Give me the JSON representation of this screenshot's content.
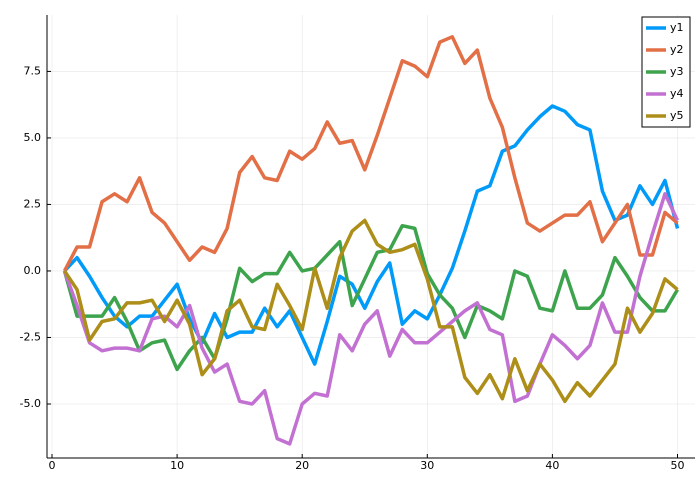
{
  "chart_data": {
    "type": "line",
    "x": [
      1,
      2,
      3,
      4,
      5,
      6,
      7,
      8,
      9,
      10,
      11,
      12,
      13,
      14,
      15,
      16,
      17,
      18,
      19,
      20,
      21,
      22,
      23,
      24,
      25,
      26,
      27,
      28,
      29,
      30,
      31,
      32,
      33,
      34,
      35,
      36,
      37,
      38,
      39,
      40,
      41,
      42,
      43,
      44,
      45,
      46,
      47,
      48,
      49,
      50
    ],
    "series": [
      {
        "name": "y1",
        "color": "#009af9",
        "values": [
          0,
          0.5,
          -0.2,
          -1.0,
          -1.7,
          -2.1,
          -1.7,
          -1.7,
          -1.1,
          -0.5,
          -1.8,
          -2.7,
          -1.6,
          -2.5,
          -2.3,
          -2.3,
          -1.4,
          -2.1,
          -1.5,
          -2.5,
          -3.5,
          -1.9,
          -0.2,
          -0.5,
          -1.4,
          -0.4,
          0.3,
          -2.0,
          -1.5,
          -1.8,
          -0.9,
          0.1,
          1.5,
          3.0,
          3.2,
          4.5,
          4.7,
          5.3,
          5.8,
          6.2,
          6.0,
          5.5,
          5.3,
          3.0,
          1.9,
          2.1,
          3.2,
          2.5,
          3.4,
          1.6
        ]
      },
      {
        "name": "y2",
        "color": "#e26f46",
        "values": [
          0,
          0.9,
          0.9,
          2.6,
          2.9,
          2.6,
          3.5,
          2.2,
          1.8,
          1.1,
          0.4,
          0.9,
          0.7,
          1.6,
          3.7,
          4.3,
          3.5,
          3.4,
          4.5,
          4.2,
          4.6,
          5.6,
          4.8,
          4.9,
          3.8,
          5.1,
          6.5,
          7.9,
          7.7,
          7.3,
          8.6,
          8.8,
          7.8,
          8.3,
          6.5,
          5.4,
          3.5,
          1.8,
          1.5,
          1.8,
          2.1,
          2.1,
          2.6,
          1.1,
          1.8,
          2.5,
          0.6,
          0.6,
          2.2,
          1.8
        ]
      },
      {
        "name": "y3",
        "color": "#3da44d",
        "values": [
          0,
          -1.7,
          -1.7,
          -1.7,
          -1.0,
          -1.9,
          -3.0,
          -2.7,
          -2.6,
          -3.7,
          -3.0,
          -2.5,
          -3.3,
          -1.8,
          0.1,
          -0.4,
          -0.1,
          -0.1,
          0.7,
          0.0,
          0.1,
          0.6,
          1.1,
          -1.3,
          -0.3,
          0.7,
          0.8,
          1.7,
          1.6,
          -0.1,
          -0.9,
          -1.4,
          -2.5,
          -1.3,
          -1.5,
          -1.8,
          0.0,
          -0.2,
          -1.4,
          -1.5,
          0.0,
          -1.4,
          -1.4,
          -0.9,
          0.5,
          -0.2,
          -1.0,
          -1.5,
          -1.5,
          -0.7
        ]
      },
      {
        "name": "y4",
        "color": "#c271d2",
        "values": [
          0,
          -1.3,
          -2.7,
          -3.0,
          -2.9,
          -2.9,
          -3.0,
          -1.8,
          -1.7,
          -2.1,
          -1.3,
          -2.9,
          -3.8,
          -3.5,
          -4.9,
          -5.0,
          -4.5,
          -6.3,
          -6.5,
          -5.0,
          -4.6,
          -4.7,
          -2.4,
          -3.0,
          -2.0,
          -1.5,
          -3.2,
          -2.2,
          -2.7,
          -2.7,
          -2.3,
          -1.9,
          -1.5,
          -1.2,
          -2.2,
          -2.4,
          -4.9,
          -4.7,
          -3.5,
          -2.4,
          -2.8,
          -3.3,
          -2.8,
          -1.2,
          -2.3,
          -2.3,
          -0.2,
          1.4,
          2.9,
          1.9
        ]
      },
      {
        "name": "y5",
        "color": "#ac8e18",
        "values": [
          0,
          -0.7,
          -2.6,
          -1.9,
          -1.8,
          -1.2,
          -1.2,
          -1.1,
          -1.9,
          -1.1,
          -2.0,
          -3.9,
          -3.3,
          -1.5,
          -1.1,
          -2.1,
          -2.2,
          -0.5,
          -1.3,
          -2.2,
          0.1,
          -1.4,
          0.5,
          1.5,
          1.9,
          1.0,
          0.7,
          0.8,
          1.0,
          -0.3,
          -2.1,
          -2.1,
          -4.0,
          -4.6,
          -3.9,
          -4.8,
          -3.3,
          -4.5,
          -3.5,
          -4.1,
          -4.9,
          -4.2,
          -4.7,
          -4.1,
          -3.5,
          -1.4,
          -2.3,
          -1.6,
          -0.3,
          -0.7
        ]
      }
    ],
    "xlim": [
      -0.4,
      51.4
    ],
    "xticks": [
      0,
      10,
      20,
      30,
      40,
      50
    ],
    "ylim": [
      -7.03,
      9.62
    ],
    "yticks": [
      {
        "value": -5,
        "label": "-5.0"
      },
      -2.5,
      {
        "value": 0,
        "label": "0.0"
      },
      2.5,
      {
        "value": 5,
        "label": "5.0"
      },
      7.5
    ],
    "grid": true,
    "legend": "top-right"
  }
}
